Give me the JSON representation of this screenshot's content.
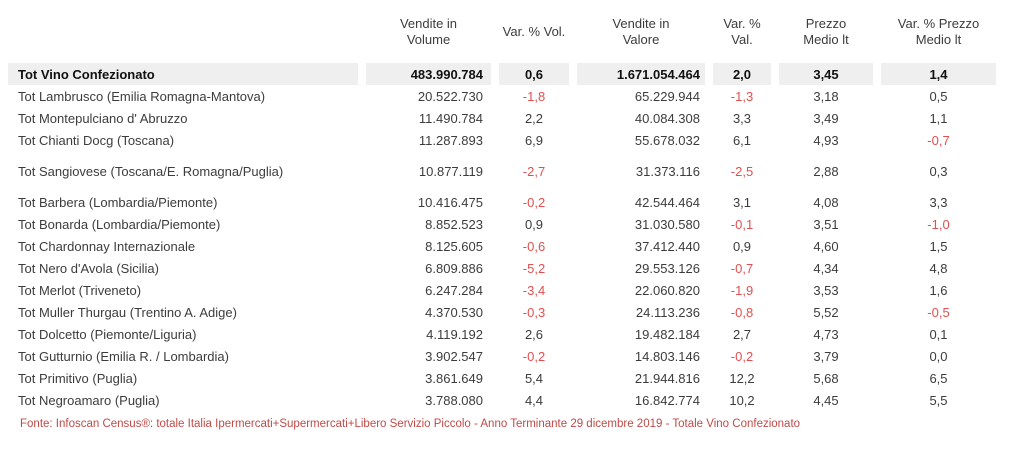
{
  "table": {
    "columns": [
      {
        "id": "volume",
        "lines": [
          "Vendite in",
          "Volume"
        ]
      },
      {
        "id": "var_vol",
        "lines": [
          "Var. % Vol."
        ]
      },
      {
        "id": "valore",
        "lines": [
          "Vendite in",
          "Valore"
        ]
      },
      {
        "id": "var_val",
        "lines": [
          "Var. % Val."
        ]
      },
      {
        "id": "prezzo",
        "lines": [
          "Prezzo",
          "Medio lt"
        ]
      },
      {
        "id": "var_prezzo",
        "lines": [
          "Var. % Prezzo",
          "Medio lt"
        ]
      }
    ],
    "rows": [
      {
        "is_total": true,
        "label": "Tot Vino Confezionato",
        "volume": "483.990.784",
        "var_vol": "0,6",
        "valore": "1.671.054.464",
        "var_val": "2,0",
        "prezzo": "3,45",
        "var_prezzo": "1,4"
      },
      {
        "label": "Tot Lambrusco (Emilia Romagna-Mantova)",
        "volume": "20.522.730",
        "var_vol": "-1,8",
        "valore": "65.229.944",
        "var_val": "-1,3",
        "prezzo": "3,18",
        "var_prezzo": "0,5"
      },
      {
        "label": "Tot Montepulciano d' Abruzzo",
        "volume": "11.490.784",
        "var_vol": "2,2",
        "valore": "40.084.308",
        "var_val": "3,3",
        "prezzo": "3,49",
        "var_prezzo": "1,1"
      },
      {
        "label": "Tot Chianti Docg (Toscana)",
        "volume": "11.287.893",
        "var_vol": "6,9",
        "valore": "55.678.032",
        "var_val": "6,1",
        "prezzo": "4,93",
        "var_prezzo": "-0,7"
      },
      {
        "gap_before": true,
        "gap_after": true,
        "label": "Tot Sangiovese (Toscana/E. Romagna/Puglia)",
        "volume": "10.877.119",
        "var_vol": "-2,7",
        "valore": "31.373.116",
        "var_val": "-2,5",
        "prezzo": "2,88",
        "var_prezzo": "0,3"
      },
      {
        "label": "Tot Barbera (Lombardia/Piemonte)",
        "volume": "10.416.475",
        "var_vol": "-0,2",
        "valore": "42.544.464",
        "var_val": "3,1",
        "prezzo": "4,08",
        "var_prezzo": "3,3"
      },
      {
        "label": "Tot Bonarda (Lombardia/Piemonte)",
        "volume": "8.852.523",
        "var_vol": "0,9",
        "valore": "31.030.580",
        "var_val": "-0,1",
        "prezzo": "3,51",
        "var_prezzo": "-1,0"
      },
      {
        "label": "Tot Chardonnay Internazionale",
        "volume": "8.125.605",
        "var_vol": "-0,6",
        "valore": "37.412.440",
        "var_val": "0,9",
        "prezzo": "4,60",
        "var_prezzo": "1,5"
      },
      {
        "label": "Tot Nero d'Avola (Sicilia)",
        "volume": "6.809.886",
        "var_vol": "-5,2",
        "valore": "29.553.126",
        "var_val": "-0,7",
        "prezzo": "4,34",
        "var_prezzo": "4,8"
      },
      {
        "label": "Tot Merlot (Triveneto)",
        "volume": "6.247.284",
        "var_vol": "-3,4",
        "valore": "22.060.820",
        "var_val": "-1,9",
        "prezzo": "3,53",
        "var_prezzo": "1,6"
      },
      {
        "label": "Tot Muller Thurgau (Trentino A. Adige)",
        "volume": "4.370.530",
        "var_vol": "-0,3",
        "valore": "24.113.236",
        "var_val": "-0,8",
        "prezzo": "5,52",
        "var_prezzo": "-0,5"
      },
      {
        "label": "Tot Dolcetto (Piemonte/Liguria)",
        "volume": "4.119.192",
        "var_vol": "2,6",
        "valore": "19.482.184",
        "var_val": "2,7",
        "prezzo": "4,73",
        "var_prezzo": "0,1"
      },
      {
        "label": "Tot Gutturnio (Emilia R. / Lombardia)",
        "volume": "3.902.547",
        "var_vol": "-0,2",
        "valore": "14.803.146",
        "var_val": "-0,2",
        "prezzo": "3,79",
        "var_prezzo": "0,0"
      },
      {
        "label": "Tot Primitivo (Puglia)",
        "volume": "3.861.649",
        "var_vol": "5,4",
        "valore": "21.944.816",
        "var_val": "12,2",
        "prezzo": "5,68",
        "var_prezzo": "6,5"
      },
      {
        "label": "Tot Negroamaro (Puglia)",
        "volume": "3.788.080",
        "var_vol": "4,4",
        "valore": "16.842.774",
        "var_val": "10,2",
        "prezzo": "4,45",
        "var_prezzo": "5,5"
      }
    ]
  },
  "footer": {
    "text": "Fonte: Infoscan Census®: totale Italia Ipermercati+Supermercati+Libero Servizio Piccolo - Anno Terminante 29 dicembre 2019 - Totale Vino Confezionato"
  },
  "colors": {
    "negative_value": "#e05050",
    "footer_text": "#bf4a47",
    "total_row_background": "#efefef"
  }
}
